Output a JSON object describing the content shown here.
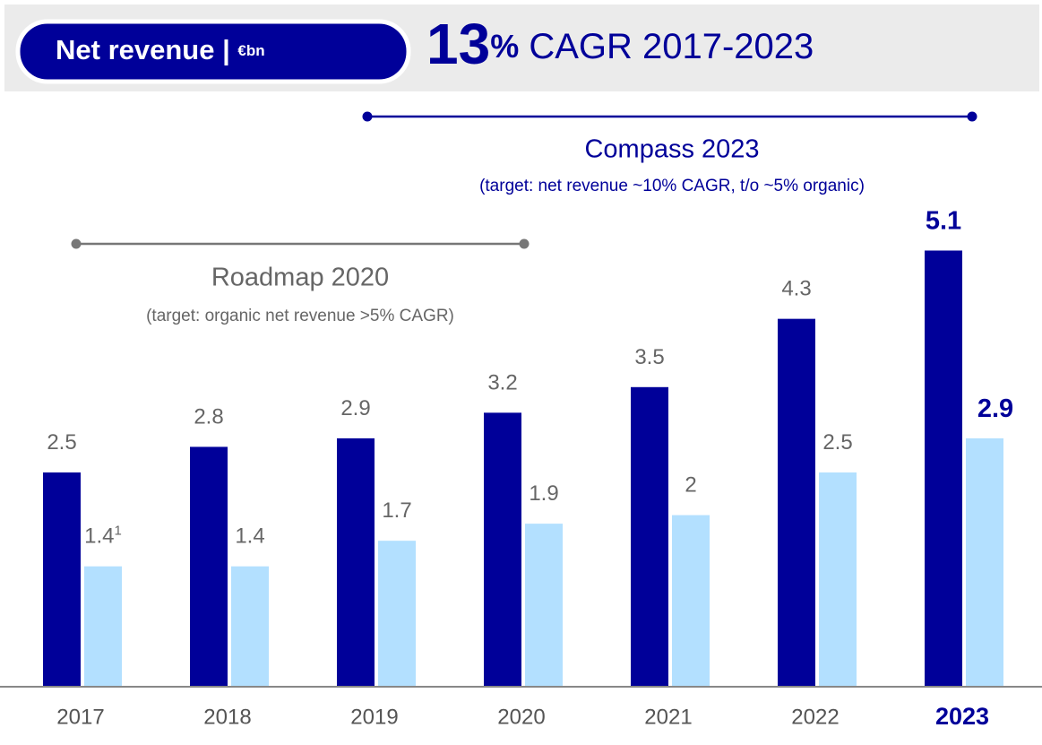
{
  "chart_data": {
    "type": "bar",
    "header": {
      "title": "Net revenue | ",
      "unit": "€bn",
      "headline_number": "13",
      "headline_unit": "%",
      "headline_text": " CAGR 2017-2023"
    },
    "periods": [
      {
        "title": "Compass 2023",
        "subtitle": "(target: net revenue ~10% CAGR, t/o ~5% organic)"
      },
      {
        "title": "Roadmap 2020",
        "subtitle": "(target: organic net revenue >5% CAGR)"
      }
    ],
    "categories": [
      "2017",
      "2018",
      "2019",
      "2020",
      "2021",
      "2022",
      "2023"
    ],
    "series": [
      {
        "color": "#000099",
        "values": [
          2.5,
          2.8,
          2.9,
          3.2,
          3.5,
          4.3,
          5.1
        ]
      },
      {
        "color": "#b3e0ff",
        "values": [
          1.4,
          1.4,
          1.7,
          1.9,
          2.0,
          2.5,
          2.9
        ],
        "notes": [
          "1",
          null,
          null,
          null,
          null,
          null,
          null
        ]
      }
    ]
  }
}
